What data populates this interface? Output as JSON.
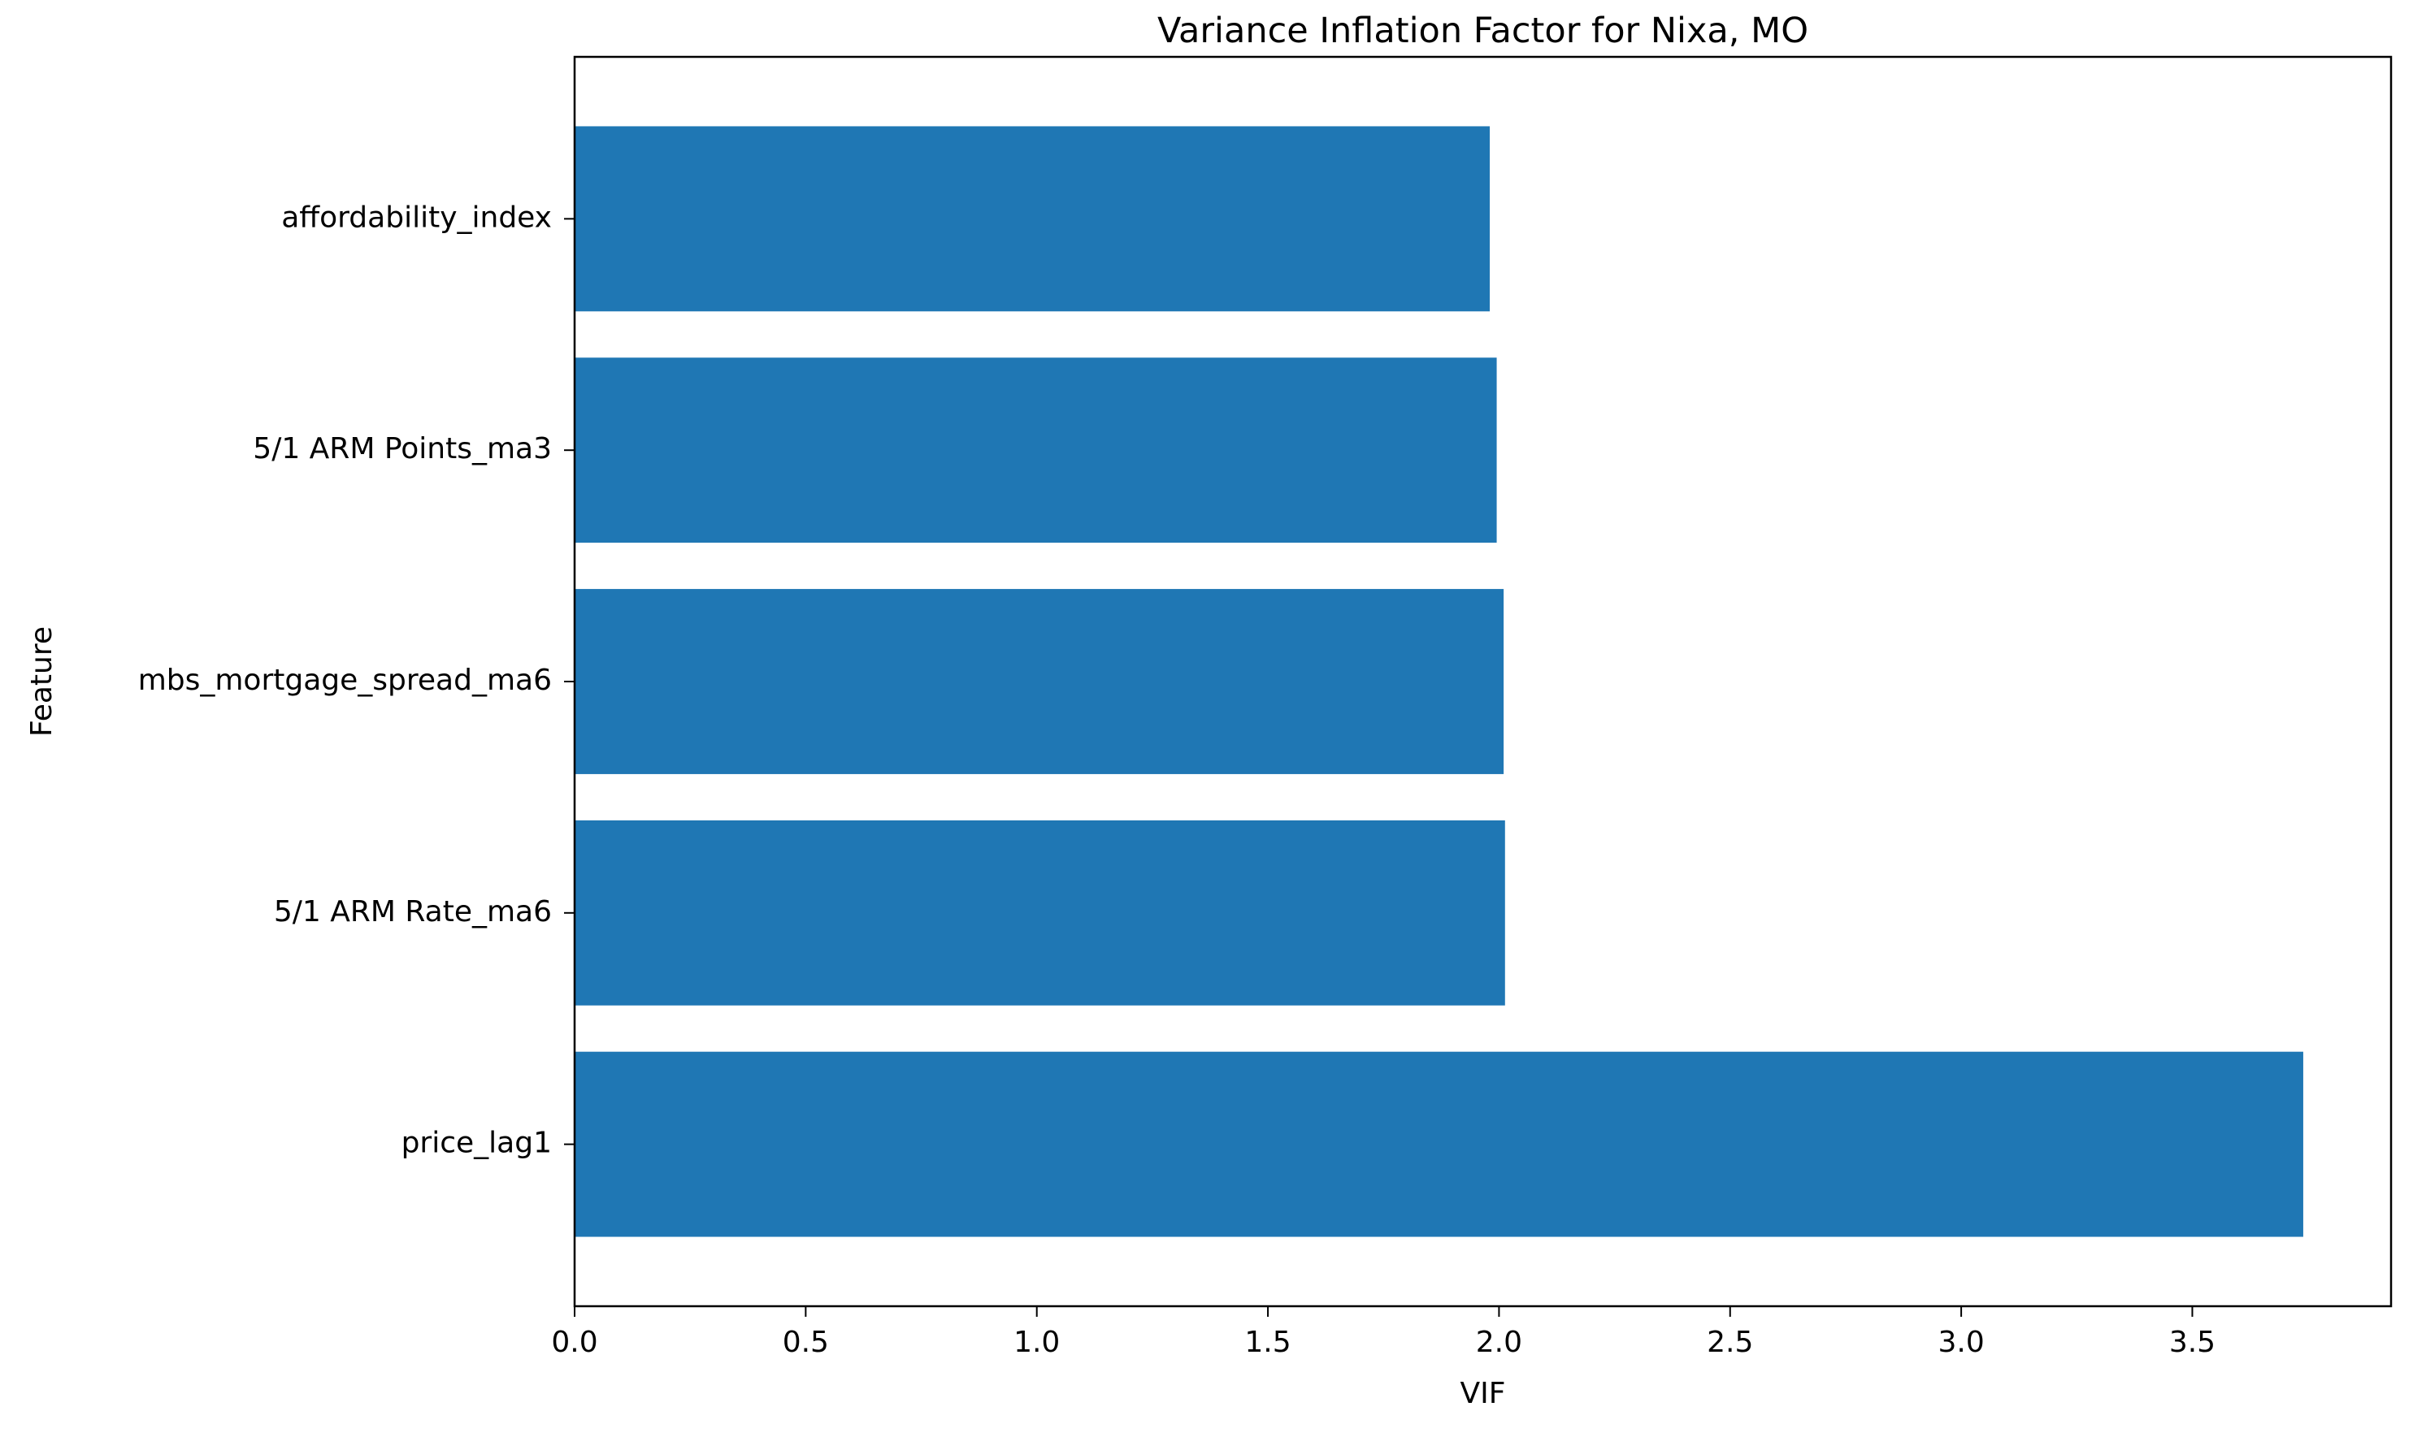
{
  "chart_data": {
    "type": "bar",
    "orientation": "horizontal",
    "title": "Variance Inflation Factor for Nixa, MO",
    "xlabel": "VIF",
    "ylabel": "Feature",
    "categories": [
      "affordability_index",
      "5/1 ARM Points_ma3",
      "mbs_mortgage_spread_ma6",
      "5/1 ARM Rate_ma6",
      "price_lag1"
    ],
    "values": [
      1.98,
      1.995,
      2.01,
      2.013,
      3.74
    ],
    "xlim": [
      0,
      3.93
    ],
    "xticks": [
      0.0,
      0.5,
      1.0,
      1.5,
      2.0,
      2.5,
      3.0,
      3.5
    ],
    "xtick_labels": [
      "0.0",
      "0.5",
      "1.0",
      "1.5",
      "2.0",
      "2.5",
      "3.0",
      "3.5"
    ],
    "grid": false,
    "legend": "none",
    "bar_color": "#1f77b4"
  }
}
